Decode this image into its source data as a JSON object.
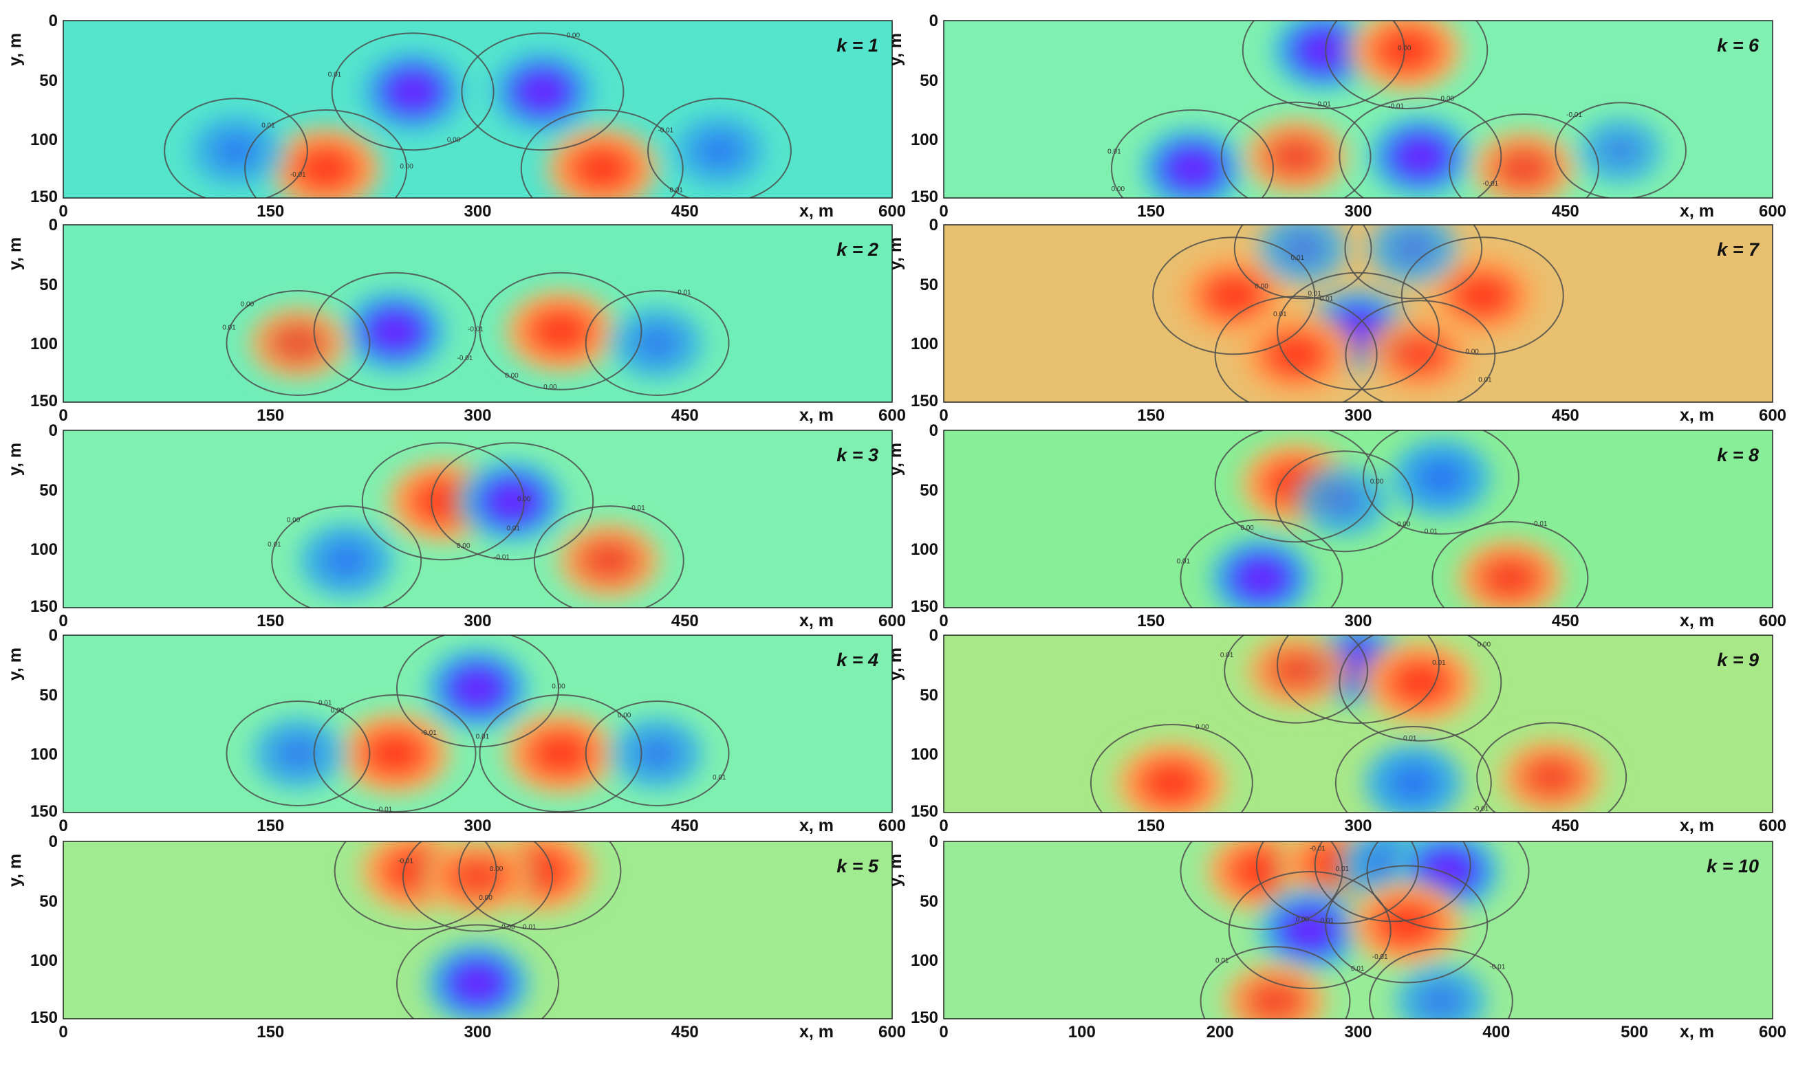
{
  "chart_data": [
    {
      "type": "heatmap",
      "k_label": "k = 1",
      "xlabel": "x, m",
      "ylabel": "y, m",
      "xlim": [
        0,
        600
      ],
      "ylim": [
        0,
        150
      ],
      "y_inverted": true,
      "xticks": [
        "0",
        "150",
        "300",
        "450",
        "600"
      ],
      "yticks": [
        "0",
        "50",
        "100",
        "150"
      ],
      "colormap": "rainbow",
      "background": "#55e5cc",
      "blobs": [
        {
          "x": 190,
          "y": 125,
          "sign": 1
        },
        {
          "x": 390,
          "y": 125,
          "sign": 1
        },
        {
          "x": 253,
          "y": 60,
          "sign": -1
        },
        {
          "x": 347,
          "y": 60,
          "sign": -1
        },
        {
          "x": 125,
          "y": 110,
          "sign": -0.7
        },
        {
          "x": 475,
          "y": 110,
          "sign": -0.7
        }
      ],
      "contour_labels": [
        "0.00",
        "-0.01",
        "0.01",
        "0.00",
        "-0.01",
        "0.01",
        "0.01",
        "-0.01",
        "0.00"
      ]
    },
    {
      "type": "heatmap",
      "k_label": "k = 6",
      "xlabel": "x, m",
      "ylabel": "y, m",
      "xlim": [
        0,
        600
      ],
      "ylim": [
        0,
        150
      ],
      "y_inverted": true,
      "xticks": [
        "0",
        "150",
        "300",
        "450",
        "600"
      ],
      "yticks": [
        "0",
        "50",
        "100",
        "150"
      ],
      "colormap": "rainbow",
      "background": "#7ff0b0",
      "blobs": [
        {
          "x": 275,
          "y": 25,
          "sign": -1
        },
        {
          "x": 335,
          "y": 25,
          "sign": 1
        },
        {
          "x": 180,
          "y": 125,
          "sign": -1
        },
        {
          "x": 255,
          "y": 115,
          "sign": 0.8
        },
        {
          "x": 345,
          "y": 115,
          "sign": -1
        },
        {
          "x": 420,
          "y": 125,
          "sign": 0.8
        },
        {
          "x": 490,
          "y": 110,
          "sign": -0.5
        }
      ],
      "contour_labels": [
        "0.00",
        "-0.01",
        "0.01",
        "0.01",
        "-0.01",
        "0.01",
        "-0.01",
        "0.00",
        "0.00",
        "0.00"
      ]
    },
    {
      "type": "heatmap",
      "k_label": "k = 2",
      "xlabel": "x, m",
      "ylabel": "y, m",
      "xlim": [
        0,
        600
      ],
      "ylim": [
        0,
        150
      ],
      "y_inverted": true,
      "xticks": [
        "0",
        "150",
        "300",
        "450",
        "600"
      ],
      "yticks": [
        "0",
        "50",
        "100",
        "150"
      ],
      "colormap": "rainbow",
      "background": "#70eeb8",
      "blobs": [
        {
          "x": 240,
          "y": 90,
          "sign": -1
        },
        {
          "x": 360,
          "y": 90,
          "sign": 1
        },
        {
          "x": 170,
          "y": 100,
          "sign": 0.7
        },
        {
          "x": 430,
          "y": 100,
          "sign": -0.7
        }
      ],
      "contour_labels": [
        "-0.01",
        "0.00",
        "0.01",
        "0.01",
        "-0.01",
        "0.00",
        "0.00"
      ]
    },
    {
      "type": "heatmap",
      "k_label": "k = 7",
      "xlabel": "x, m",
      "ylabel": "y, m",
      "xlim": [
        0,
        600
      ],
      "ylim": [
        0,
        150
      ],
      "y_inverted": true,
      "xticks": [
        "0",
        "150",
        "300",
        "450",
        "600"
      ],
      "yticks": [
        "0",
        "50",
        "100",
        "150"
      ],
      "colormap": "rainbow",
      "background": "#e8c070",
      "blobs": [
        {
          "x": 210,
          "y": 60,
          "sign": 1
        },
        {
          "x": 390,
          "y": 60,
          "sign": 1
        },
        {
          "x": 300,
          "y": 90,
          "sign": -1
        },
        {
          "x": 255,
          "y": 110,
          "sign": 1
        },
        {
          "x": 345,
          "y": 110,
          "sign": 0.8
        },
        {
          "x": 260,
          "y": 20,
          "sign": -0.6
        },
        {
          "x": 340,
          "y": 20,
          "sign": -0.6
        }
      ],
      "contour_labels": [
        "0.01",
        "0.00",
        "0.01",
        "0.01",
        "0.01",
        "0.00",
        "0.01",
        "0.01"
      ]
    },
    {
      "type": "heatmap",
      "k_label": "k = 3",
      "xlabel": "x, m",
      "ylabel": "y, m",
      "xlim": [
        0,
        600
      ],
      "ylim": [
        0,
        150
      ],
      "y_inverted": true,
      "xticks": [
        "0",
        "150",
        "300",
        "450",
        "600"
      ],
      "yticks": [
        "0",
        "50",
        "100",
        "150"
      ],
      "colormap": "rainbow",
      "background": "#7ff0b0",
      "blobs": [
        {
          "x": 275,
          "y": 60,
          "sign": 1
        },
        {
          "x": 325,
          "y": 60,
          "sign": -1
        },
        {
          "x": 205,
          "y": 110,
          "sign": -0.8
        },
        {
          "x": 395,
          "y": 110,
          "sign": 0.8
        }
      ],
      "contour_labels": [
        "0.00",
        "-0.01",
        "0.01",
        "-0.01",
        "0.01",
        "0.00",
        "0.00"
      ]
    },
    {
      "type": "heatmap",
      "k_label": "k = 8",
      "xlabel": "x, m",
      "ylabel": "y, m",
      "xlim": [
        0,
        600
      ],
      "ylim": [
        0,
        150
      ],
      "y_inverted": true,
      "xticks": [
        "0",
        "150",
        "300",
        "450",
        "600"
      ],
      "yticks": [
        "0",
        "50",
        "100",
        "150"
      ],
      "colormap": "rainbow",
      "background": "#88ee98",
      "blobs": [
        {
          "x": 255,
          "y": 45,
          "sign": 1
        },
        {
          "x": 360,
          "y": 40,
          "sign": -0.9
        },
        {
          "x": 230,
          "y": 125,
          "sign": -1
        },
        {
          "x": 410,
          "y": 125,
          "sign": 0.9
        },
        {
          "x": 290,
          "y": 60,
          "sign": -0.6
        }
      ],
      "contour_labels": [
        "0.00",
        "0.01",
        "0.01",
        "-0.01",
        "0.00",
        "0.00"
      ]
    },
    {
      "type": "heatmap",
      "k_label": "k = 4",
      "xlabel": "x, m",
      "ylabel": "y, m",
      "xlim": [
        0,
        600
      ],
      "ylim": [
        0,
        150
      ],
      "y_inverted": true,
      "xticks": [
        "0",
        "150",
        "300",
        "450",
        "600"
      ],
      "yticks": [
        "0",
        "50",
        "100",
        "150"
      ],
      "colormap": "rainbow",
      "background": "#7ff0b0",
      "blobs": [
        {
          "x": 300,
          "y": 45,
          "sign": -1
        },
        {
          "x": 240,
          "y": 100,
          "sign": 1
        },
        {
          "x": 360,
          "y": 100,
          "sign": 1
        },
        {
          "x": 170,
          "y": 100,
          "sign": -0.7
        },
        {
          "x": 430,
          "y": 100,
          "sign": -0.7
        }
      ],
      "contour_labels": [
        "0.00",
        "-0.01",
        "0.01",
        "0.01",
        "0.01",
        "-0.01",
        "0.00",
        "0.00"
      ]
    },
    {
      "type": "heatmap",
      "k_label": "k = 9",
      "xlabel": "x, m",
      "ylabel": "y, m",
      "xlim": [
        0,
        600
      ],
      "ylim": [
        0,
        150
      ],
      "y_inverted": true,
      "xticks": [
        "0",
        "150",
        "300",
        "450",
        "600"
      ],
      "yticks": [
        "0",
        "50",
        "100",
        "150"
      ],
      "colormap": "rainbow",
      "background": "#a8e888",
      "blobs": [
        {
          "x": 300,
          "y": 25,
          "sign": -1
        },
        {
          "x": 345,
          "y": 40,
          "sign": 1
        },
        {
          "x": 255,
          "y": 30,
          "sign": 0.7
        },
        {
          "x": 165,
          "y": 125,
          "sign": 1
        },
        {
          "x": 340,
          "y": 125,
          "sign": -0.9
        },
        {
          "x": 440,
          "y": 120,
          "sign": 0.8
        }
      ],
      "contour_labels": [
        "0.01",
        "0.01",
        "0.01",
        "0.00",
        "-0.01",
        "0.01",
        "0.00",
        "0.00"
      ]
    },
    {
      "type": "heatmap",
      "k_label": "k = 5",
      "xlabel": "x, m",
      "ylabel": "y, m",
      "xlim": [
        0,
        600
      ],
      "ylim": [
        0,
        150
      ],
      "y_inverted": true,
      "xticks": [
        "0",
        "150",
        "300",
        "450",
        "600"
      ],
      "yticks": [
        "0",
        "50",
        "100",
        "150"
      ],
      "colormap": "rainbow",
      "background": "#a0ea90",
      "blobs": [
        {
          "x": 255,
          "y": 25,
          "sign": 1
        },
        {
          "x": 345,
          "y": 25,
          "sign": 1
        },
        {
          "x": 300,
          "y": 30,
          "sign": 0.8
        },
        {
          "x": 300,
          "y": 120,
          "sign": -1
        }
      ],
      "contour_labels": [
        "0.00",
        "0.01",
        "-0.01",
        "0.00",
        "0.00"
      ]
    },
    {
      "type": "heatmap",
      "k_label": "k = 10",
      "xlabel": "x, m",
      "ylabel": "y, m",
      "xlim": [
        0,
        600
      ],
      "ylim": [
        0,
        150
      ],
      "y_inverted": true,
      "xticks": [
        "0",
        "100",
        "200",
        "300",
        "400",
        "500",
        "600"
      ],
      "yticks": [
        "0",
        "50",
        "100",
        "150"
      ],
      "colormap": "rainbow",
      "background": "#98ec98",
      "blobs": [
        {
          "x": 230,
          "y": 25,
          "sign": 1
        },
        {
          "x": 285,
          "y": 20,
          "sign": 1
        },
        {
          "x": 325,
          "y": 20,
          "sign": -0.9
        },
        {
          "x": 365,
          "y": 25,
          "sign": -1
        },
        {
          "x": 265,
          "y": 75,
          "sign": -1
        },
        {
          "x": 335,
          "y": 70,
          "sign": 1
        },
        {
          "x": 240,
          "y": 135,
          "sign": 0.8
        },
        {
          "x": 360,
          "y": 135,
          "sign": -0.7
        }
      ],
      "contour_labels": [
        "0.01",
        "0.01",
        "-0.01",
        "0.01",
        "-0.01",
        "0.01",
        "0.01",
        "-0.01",
        "0.00"
      ]
    }
  ]
}
